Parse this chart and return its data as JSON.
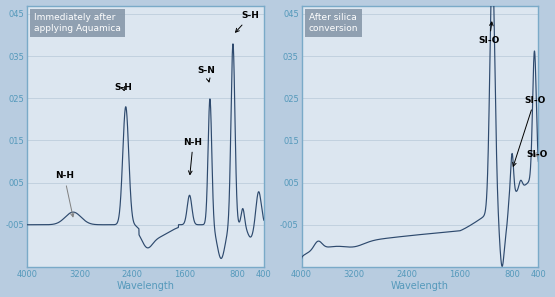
{
  "bg_color": "#dce6f0",
  "line_color": "#2e4a6e",
  "border_color": "#7aaac8",
  "text_color_axis": "#5599bb",
  "ylim": [
    -0.015,
    0.047
  ],
  "xlabel": "Wavelength",
  "label1": "Immediately after\napplying Aquamica",
  "label2": "After silica\nconversion",
  "gridline_color": "#b8c8d8",
  "ytick_vals": [
    -0.005,
    0.005,
    0.015,
    0.025,
    0.035,
    0.045
  ],
  "ytick_labels": [
    "-005",
    "005",
    "015",
    "025",
    "035",
    "045"
  ],
  "xtick_vals": [
    4000,
    3200,
    2400,
    1600,
    800,
    400
  ],
  "fig_bg": "#b8cce0"
}
